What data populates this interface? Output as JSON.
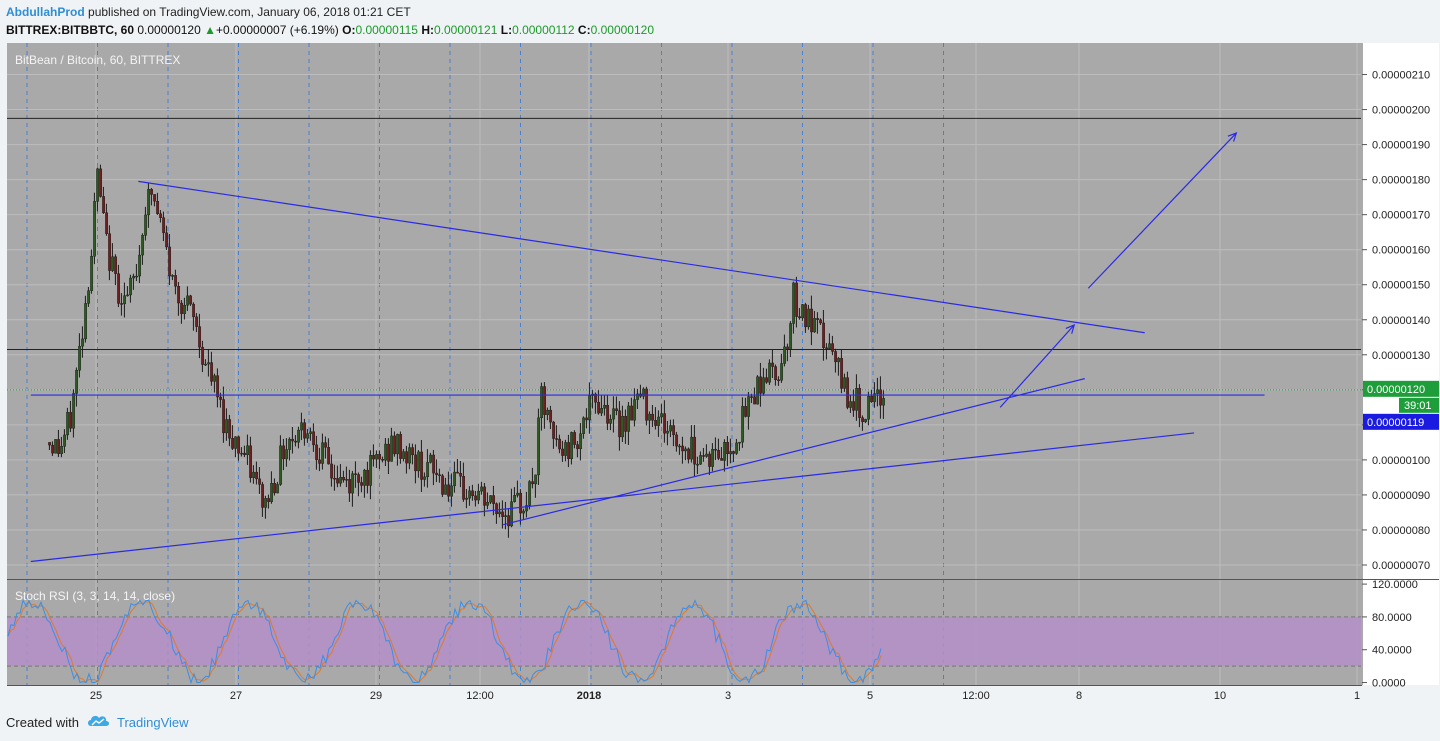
{
  "header": {
    "author": "AbdullahProd",
    "published_text": "published on TradingView.com, January 06, 2018 01:21 CET",
    "symbol": "BITTREX:BITBBTC, 60",
    "price": "0.00000120",
    "up_arrow": "▲",
    "change": "+0.00000007 (+6.19%)",
    "o_label": "O:",
    "o_value": "0.00000115",
    "h_label": "H:",
    "h_value": "0.00000121",
    "l_label": "L:",
    "l_value": "0.00000112",
    "c_label": "C:",
    "c_value": "0.00000120"
  },
  "footer": {
    "created_with": "Created with",
    "brand": "TradingView",
    "logo_icon": "tradingview-cloud-icon"
  },
  "colors": {
    "pane_bg": "#a9a9a9",
    "candle_up": "#2e5a22",
    "candle_down": "#6e1f1f",
    "trendline": "#2a2ae6",
    "rsi_band": "#b48fc8",
    "rsi_k": "#3c8ee6",
    "rsi_d": "#e07a2c",
    "last_price_bg": "#1e9e3a",
    "countdown_bg": "#1e9e3a",
    "line_price_bg": "#1a1ae0"
  },
  "chart_data": {
    "type": "candlestick",
    "title": "BitBean / Bitcoin, 60, BITTREX",
    "y_ticks": [
      "0.00000210",
      "0.00000200",
      "0.00000190",
      "0.00000180",
      "0.00000170",
      "0.00000160",
      "0.00000150",
      "0.00000140",
      "0.00000130",
      "0.00000120",
      "0.00000110",
      "0.00000100",
      "0.00000090",
      "0.00000080",
      "0.00000070"
    ],
    "ylim": [
      6.6e-07,
      2.19e-06
    ],
    "x_ticks": [
      {
        "label": "25",
        "bold": false
      },
      {
        "label": "27",
        "bold": false
      },
      {
        "label": "29",
        "bold": false
      },
      {
        "label": "12:00",
        "bold": false
      },
      {
        "label": "2018",
        "bold": true
      },
      {
        "label": "3",
        "bold": false
      },
      {
        "label": "5",
        "bold": false
      },
      {
        "label": "12:00",
        "bold": false
      },
      {
        "label": "8",
        "bold": false
      },
      {
        "label": "10",
        "bold": false
      },
      {
        "label": "1",
        "bold": false
      }
    ],
    "horizontal_lines": [
      1.975e-06,
      1.315e-06
    ],
    "last_price_label": "0.00000120",
    "countdown_label": "39:01",
    "line_price_label": "0.00000119",
    "last_price": 1.2e-06,
    "line_price": 1.185e-06,
    "price_path": [
      [
        0.0,
        1.05
      ],
      [
        0.3,
        1.03
      ],
      [
        0.6,
        1.12
      ],
      [
        0.9,
        1.35
      ],
      [
        1.2,
        1.6
      ],
      [
        1.35,
        1.82
      ],
      [
        1.6,
        1.62
      ],
      [
        1.9,
        1.5
      ],
      [
        2.2,
        1.45
      ],
      [
        2.5,
        1.55
      ],
      [
        2.7,
        1.72
      ],
      [
        2.9,
        1.76
      ],
      [
        3.2,
        1.65
      ],
      [
        3.5,
        1.5
      ],
      [
        3.8,
        1.45
      ],
      [
        4.1,
        1.4
      ],
      [
        4.4,
        1.28
      ],
      [
        4.7,
        1.2
      ],
      [
        5.0,
        1.1
      ],
      [
        5.3,
        1.05
      ],
      [
        5.6,
        1.0
      ],
      [
        5.9,
        0.92
      ],
      [
        6.1,
        0.87
      ],
      [
        6.4,
        0.95
      ],
      [
        6.7,
        1.05
      ],
      [
        7.0,
        1.08
      ],
      [
        7.3,
        1.1
      ],
      [
        7.6,
        1.04
      ],
      [
        7.9,
        0.98
      ],
      [
        8.2,
        0.94
      ],
      [
        8.5,
        0.93
      ],
      [
        8.8,
        0.96
      ],
      [
        9.1,
        0.97
      ],
      [
        9.4,
        1.0
      ],
      [
        9.7,
        1.04
      ],
      [
        10.0,
        1.03
      ],
      [
        10.3,
        1.0
      ],
      [
        10.6,
        0.98
      ],
      [
        10.9,
        0.97
      ],
      [
        11.2,
        0.93
      ],
      [
        11.5,
        0.92
      ],
      [
        11.8,
        0.91
      ],
      [
        12.1,
        0.9
      ],
      [
        12.4,
        0.88
      ],
      [
        12.7,
        0.86
      ],
      [
        13.0,
        0.85
      ],
      [
        13.3,
        0.87
      ],
      [
        13.6,
        0.9
      ],
      [
        13.8,
        0.98
      ],
      [
        13.95,
        1.18
      ],
      [
        14.1,
        1.12
      ],
      [
        14.3,
        1.05
      ],
      [
        14.6,
        1.02
      ],
      [
        14.9,
        1.06
      ],
      [
        15.2,
        1.12
      ],
      [
        15.5,
        1.17
      ],
      [
        15.8,
        1.15
      ],
      [
        16.1,
        1.1
      ],
      [
        16.4,
        1.13
      ],
      [
        16.7,
        1.18
      ],
      [
        17.0,
        1.15
      ],
      [
        17.3,
        1.12
      ],
      [
        17.6,
        1.08
      ],
      [
        17.9,
        1.04
      ],
      [
        18.2,
        1.03
      ],
      [
        18.5,
        1.02
      ],
      [
        18.8,
        1.01
      ],
      [
        19.1,
        1.02
      ],
      [
        19.4,
        1.05
      ],
      [
        19.7,
        1.12
      ],
      [
        20.0,
        1.2
      ],
      [
        20.3,
        1.25
      ],
      [
        20.6,
        1.24
      ],
      [
        20.8,
        1.3
      ],
      [
        21.0,
        1.38
      ],
      [
        21.1,
        1.47
      ],
      [
        21.3,
        1.43
      ],
      [
        21.6,
        1.38
      ],
      [
        21.9,
        1.35
      ],
      [
        22.2,
        1.3
      ],
      [
        22.4,
        1.24
      ],
      [
        22.6,
        1.2
      ],
      [
        22.8,
        1.17
      ],
      [
        23.0,
        1.15
      ],
      [
        23.2,
        1.14
      ],
      [
        23.5,
        1.16
      ],
      [
        23.7,
        1.2
      ]
    ],
    "trendlines_price_units": [
      {
        "from": [
          -0.5,
          7.1e-07
        ],
        "to": [
          32.5,
          1.077e-06
        ]
      },
      {
        "from": [
          12.9,
          8.15e-07
        ],
        "to": [
          29.4,
          1.232e-06
        ]
      },
      {
        "from": [
          2.55,
          1.795e-06
        ],
        "to": [
          31.1,
          1.363e-06
        ]
      },
      {
        "from": [
          -0.5,
          1.185e-06
        ],
        "to": [
          34.5,
          1.185e-06
        ]
      }
    ],
    "arrows_price_units": [
      {
        "from": [
          27.0,
          1.15e-06
        ],
        "to": [
          29.1,
          1.385e-06
        ]
      },
      {
        "from": [
          29.5,
          1.49e-06
        ],
        "to": [
          33.7,
          1.933e-06
        ]
      }
    ],
    "rsi": {
      "title": "Stoch RSI (3, 3, 14, 14, close)",
      "y_ticks": [
        "120.0000",
        "80.0000",
        "40.0000",
        "0.0000"
      ],
      "ylim": [
        -3,
        125
      ],
      "band": [
        20,
        80
      ],
      "k_seed": 7,
      "d_lag": 2
    }
  }
}
